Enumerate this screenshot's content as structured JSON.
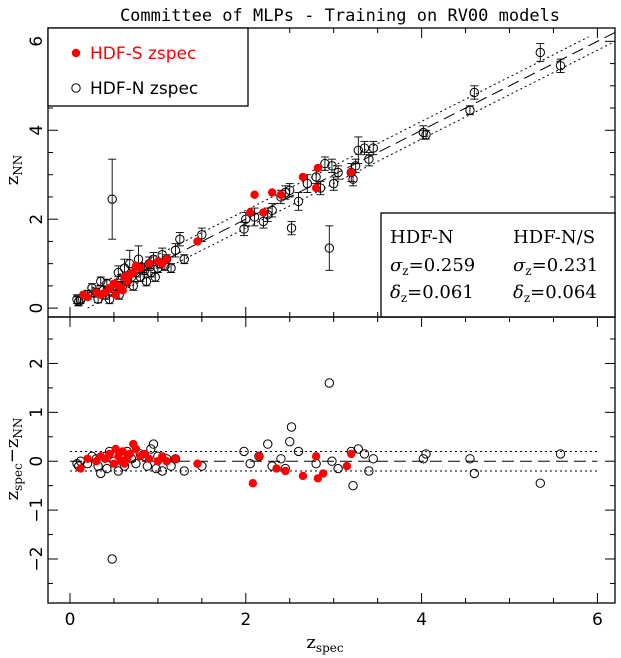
{
  "chart_data": [
    {
      "type": "scatter",
      "panel": "top",
      "title": "Committee of MLPs - Training on RV00 models",
      "xlabel": "z_spec",
      "ylabel": "z_NN",
      "ylabel_parts": {
        "main": "z",
        "sub": "NN"
      },
      "xlim": [
        -0.25,
        6.2
      ],
      "ylim": [
        -0.2,
        6.3
      ],
      "x_ticks": [
        0,
        2,
        4,
        6
      ],
      "y_ticks": [
        0,
        2,
        4,
        6
      ],
      "legend_position": "top-left",
      "legend": [
        {
          "label": "HDF-S zspec",
          "color": "#ff0000",
          "marker": "filled-circle"
        },
        {
          "label": "HDF-N zspec",
          "color": "#000000",
          "marker": "open-circle"
        }
      ],
      "stats_box": {
        "position": "bottom-right",
        "headers": [
          "HDF-N",
          "HDF-N/S"
        ],
        "rows": [
          {
            "symbol": "σ",
            "sub": "z",
            "values": [
              "=0.259",
              "=0.231"
            ]
          },
          {
            "symbol": "δ",
            "sub": "z",
            "values": [
              "=0.061",
              "=0.064"
            ]
          }
        ]
      },
      "lines": [
        {
          "style": "dashed",
          "relation": "y = x"
        },
        {
          "style": "dotted",
          "relation": "y = x ± 0.2"
        }
      ],
      "series": [
        {
          "name": "HDF-N zspec",
          "marker": "open-circle",
          "color": "#000000",
          "points": [
            [
              0.08,
              0.2,
              0.1
            ],
            [
              0.1,
              0.15,
              0.1
            ],
            [
              0.12,
              0.18,
              0.08
            ],
            [
              0.2,
              0.3,
              0.1
            ],
            [
              0.25,
              0.45,
              0.1
            ],
            [
              0.3,
              0.35,
              0.1
            ],
            [
              0.32,
              0.2,
              0.08
            ],
            [
              0.35,
              0.6,
              0.1
            ],
            [
              0.38,
              0.4,
              0.1
            ],
            [
              0.4,
              0.3,
              0.1
            ],
            [
              0.42,
              0.55,
              0.1
            ],
            [
              0.45,
              0.2,
              0.1
            ],
            [
              0.48,
              2.45,
              0.9
            ],
            [
              0.5,
              0.45,
              0.1
            ],
            [
              0.52,
              0.5,
              0.1
            ],
            [
              0.55,
              0.8,
              0.15
            ],
            [
              0.56,
              0.3,
              0.1
            ],
            [
              0.58,
              0.65,
              0.1
            ],
            [
              0.6,
              0.5,
              0.1
            ],
            [
              0.62,
              0.9,
              0.2
            ],
            [
              0.65,
              0.6,
              0.1
            ],
            [
              0.68,
              1.0,
              0.3
            ],
            [
              0.7,
              0.7,
              0.1
            ],
            [
              0.72,
              0.5,
              0.1
            ],
            [
              0.75,
              0.8,
              0.1
            ],
            [
              0.78,
              1.1,
              0.3
            ],
            [
              0.8,
              0.7,
              0.1
            ],
            [
              0.82,
              0.9,
              0.1
            ],
            [
              0.85,
              0.85,
              0.1
            ],
            [
              0.87,
              0.6,
              0.1
            ],
            [
              0.9,
              1.0,
              0.15
            ],
            [
              0.92,
              0.8,
              0.1
            ],
            [
              0.95,
              1.1,
              0.15
            ],
            [
              0.97,
              0.7,
              0.1
            ],
            [
              1.0,
              0.9,
              0.1
            ],
            [
              1.02,
              1.0,
              0.1
            ],
            [
              1.05,
              1.2,
              0.15
            ],
            [
              1.08,
              0.95,
              0.1
            ],
            [
              1.1,
              1.1,
              0.1
            ],
            [
              1.15,
              0.9,
              0.1
            ],
            [
              1.2,
              1.3,
              0.15
            ],
            [
              1.25,
              1.55,
              0.15
            ],
            [
              1.3,
              1.1,
              0.1
            ],
            [
              1.5,
              1.65,
              0.15
            ],
            [
              1.98,
              1.78,
              0.15
            ],
            [
              2.0,
              2.0,
              0.15
            ],
            [
              2.1,
              2.05,
              0.2
            ],
            [
              2.2,
              1.95,
              0.15
            ],
            [
              2.25,
              2.1,
              0.15
            ],
            [
              2.3,
              2.2,
              0.15
            ],
            [
              2.4,
              2.5,
              0.15
            ],
            [
              2.45,
              2.6,
              0.15
            ],
            [
              2.5,
              2.65,
              0.15
            ],
            [
              2.52,
              1.8,
              0.15
            ],
            [
              2.6,
              2.4,
              0.2
            ],
            [
              2.7,
              2.8,
              0.2
            ],
            [
              2.8,
              2.95,
              0.15
            ],
            [
              2.85,
              2.7,
              0.15
            ],
            [
              2.9,
              3.25,
              0.15
            ],
            [
              2.95,
              1.35,
              0.5
            ],
            [
              2.98,
              3.2,
              0.15
            ],
            [
              3.0,
              2.8,
              0.15
            ],
            [
              3.05,
              3.05,
              0.15
            ],
            [
              3.2,
              3.05,
              0.2
            ],
            [
              3.22,
              2.9,
              0.15
            ],
            [
              3.25,
              3.2,
              0.15
            ],
            [
              3.28,
              3.55,
              0.3
            ],
            [
              3.35,
              3.6,
              0.15
            ],
            [
              3.4,
              3.35,
              0.15
            ],
            [
              3.45,
              3.6,
              0.15
            ],
            [
              4.02,
              3.95,
              0.15
            ],
            [
              4.05,
              3.9,
              0.1
            ],
            [
              4.55,
              4.45,
              0.1
            ],
            [
              4.6,
              4.85,
              0.15
            ],
            [
              5.35,
              5.75,
              0.2
            ],
            [
              5.58,
              5.45,
              0.15
            ]
          ]
        },
        {
          "name": "HDF-S zspec",
          "marker": "filled-circle",
          "color": "#ff0000",
          "points": [
            [
              0.15,
              0.3,
              0
            ],
            [
              0.2,
              0.25,
              0
            ],
            [
              0.3,
              0.35,
              0
            ],
            [
              0.35,
              0.3,
              0
            ],
            [
              0.4,
              0.35,
              0
            ],
            [
              0.45,
              0.45,
              0
            ],
            [
              0.5,
              0.55,
              0
            ],
            [
              0.52,
              0.3,
              0
            ],
            [
              0.55,
              0.5,
              0
            ],
            [
              0.58,
              0.45,
              0
            ],
            [
              0.6,
              0.4,
              0
            ],
            [
              0.62,
              0.7,
              0
            ],
            [
              0.65,
              0.6,
              0
            ],
            [
              0.68,
              0.75,
              0
            ],
            [
              0.72,
              0.8,
              0
            ],
            [
              0.75,
              0.95,
              0
            ],
            [
              0.8,
              0.9,
              0
            ],
            [
              0.9,
              1.0,
              0
            ],
            [
              1.0,
              1.05,
              0
            ],
            [
              1.05,
              1.0,
              0
            ],
            [
              1.1,
              1.1,
              0
            ],
            [
              1.45,
              1.5,
              0
            ],
            [
              2.05,
              2.15,
              0
            ],
            [
              2.1,
              2.55,
              0
            ],
            [
              2.2,
              2.15,
              0
            ],
            [
              2.3,
              2.6,
              0
            ],
            [
              2.4,
              2.55,
              0
            ],
            [
              2.65,
              2.95,
              0
            ],
            [
              2.8,
              2.7,
              0
            ],
            [
              2.82,
              3.15,
              0
            ],
            [
              3.2,
              3.05,
              0
            ]
          ]
        }
      ]
    },
    {
      "type": "scatter",
      "panel": "bottom",
      "xlabel": "z_spec",
      "ylabel": "z_spec - z_NN",
      "xlabel_parts": {
        "main": "z",
        "sub": "spec"
      },
      "ylabel_parts": {
        "main1": "z",
        "sub1": "spec",
        "minus": "−",
        "main2": "z",
        "sub2": "NN"
      },
      "xlim": [
        -0.25,
        6.2
      ],
      "ylim": [
        -2.9,
        2.95
      ],
      "x_ticks": [
        0,
        2,
        4,
        6
      ],
      "y_ticks": [
        -2,
        -1,
        0,
        1,
        2
      ],
      "y_tick_labels": [
        "−2",
        "−1",
        "0",
        "1",
        "2"
      ],
      "lines": [
        {
          "style": "dashed",
          "y": 0
        },
        {
          "style": "dotted",
          "y": 0.2
        },
        {
          "style": "dotted",
          "y": -0.2
        }
      ],
      "series": [
        {
          "name": "HDF-N zspec",
          "marker": "open-circle",
          "color": "#000000",
          "points": [
            [
              0.08,
              -0.05
            ],
            [
              0.1,
              -0.1
            ],
            [
              0.12,
              0.0
            ],
            [
              0.2,
              -0.05
            ],
            [
              0.25,
              0.1
            ],
            [
              0.3,
              0.05
            ],
            [
              0.32,
              -0.1
            ],
            [
              0.35,
              -0.25
            ],
            [
              0.4,
              0.1
            ],
            [
              0.42,
              -0.15
            ],
            [
              0.45,
              0.2
            ],
            [
              0.48,
              -2.0
            ],
            [
              0.5,
              0.0
            ],
            [
              0.55,
              -0.2
            ],
            [
              0.58,
              0.15
            ],
            [
              0.62,
              -0.1
            ],
            [
              0.65,
              0.2
            ],
            [
              0.7,
              0.05
            ],
            [
              0.75,
              -0.05
            ],
            [
              0.8,
              0.15
            ],
            [
              0.85,
              0.1
            ],
            [
              0.88,
              -0.1
            ],
            [
              0.92,
              0.25
            ],
            [
              0.95,
              0.35
            ],
            [
              0.98,
              -0.15
            ],
            [
              1.0,
              0.1
            ],
            [
              1.05,
              -0.2
            ],
            [
              1.1,
              0.05
            ],
            [
              1.15,
              -0.1
            ],
            [
              1.2,
              0.05
            ],
            [
              1.3,
              -0.2
            ],
            [
              1.5,
              -0.1
            ],
            [
              1.98,
              0.2
            ],
            [
              2.05,
              -0.05
            ],
            [
              2.15,
              0.1
            ],
            [
              2.25,
              0.35
            ],
            [
              2.3,
              -0.1
            ],
            [
              2.4,
              0.05
            ],
            [
              2.45,
              -0.15
            ],
            [
              2.5,
              0.4
            ],
            [
              2.52,
              0.7
            ],
            [
              2.6,
              0.2
            ],
            [
              2.8,
              -0.05
            ],
            [
              2.95,
              1.6
            ],
            [
              2.98,
              0.0
            ],
            [
              3.05,
              -0.15
            ],
            [
              3.2,
              0.2
            ],
            [
              3.22,
              -0.5
            ],
            [
              3.28,
              0.25
            ],
            [
              3.35,
              0.15
            ],
            [
              3.4,
              -0.2
            ],
            [
              3.45,
              0.05
            ],
            [
              4.02,
              0.05
            ],
            [
              4.05,
              0.15
            ],
            [
              4.55,
              0.05
            ],
            [
              4.6,
              -0.25
            ],
            [
              5.35,
              -0.45
            ],
            [
              5.58,
              0.15
            ]
          ]
        },
        {
          "name": "HDF-S zspec",
          "marker": "filled-circle",
          "color": "#ff0000",
          "points": [
            [
              0.12,
              -0.15
            ],
            [
              0.2,
              0.05
            ],
            [
              0.3,
              0.0
            ],
            [
              0.35,
              0.1
            ],
            [
              0.4,
              0.05
            ],
            [
              0.45,
              0.15
            ],
            [
              0.5,
              -0.05
            ],
            [
              0.52,
              0.25
            ],
            [
              0.55,
              0.1
            ],
            [
              0.58,
              0.0
            ],
            [
              0.6,
              0.2
            ],
            [
              0.62,
              -0.05
            ],
            [
              0.65,
              0.05
            ],
            [
              0.68,
              0.15
            ],
            [
              0.72,
              0.35
            ],
            [
              0.75,
              0.25
            ],
            [
              0.8,
              0.1
            ],
            [
              0.85,
              0.15
            ],
            [
              0.9,
              0.05
            ],
            [
              1.0,
              0.0
            ],
            [
              1.05,
              0.1
            ],
            [
              1.1,
              0.0
            ],
            [
              1.2,
              0.05
            ],
            [
              1.45,
              -0.05
            ],
            [
              2.08,
              -0.45
            ],
            [
              2.15,
              0.1
            ],
            [
              2.35,
              -0.15
            ],
            [
              2.45,
              -0.2
            ],
            [
              2.65,
              -0.3
            ],
            [
              2.8,
              0.1
            ],
            [
              2.82,
              -0.35
            ],
            [
              2.88,
              -0.25
            ],
            [
              3.15,
              -0.1
            ],
            [
              3.2,
              0.15
            ]
          ]
        }
      ]
    }
  ]
}
